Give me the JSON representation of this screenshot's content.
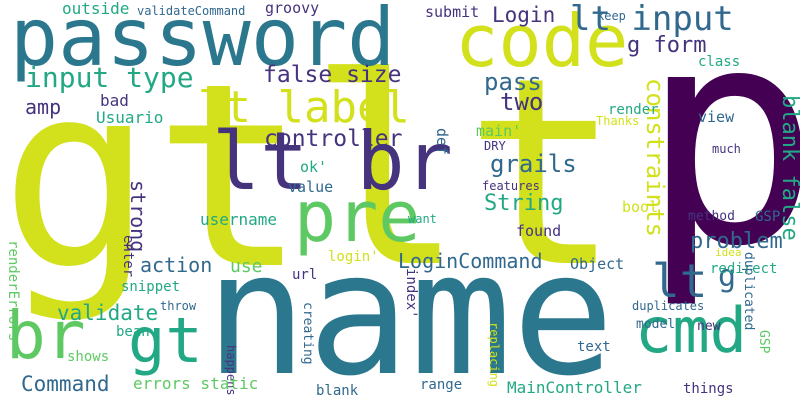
{
  "palette": {
    "background": "#ffffff",
    "yellow_green": "#d2e11b",
    "teal": "#2b788e",
    "deep_purple": "#46337e",
    "dark_purple": "#440154",
    "green": "#5ec962",
    "blue_teal": "#31688e",
    "sea_green": "#22a884",
    "light_green": "#90d743"
  },
  "words": [
    {
      "text": "gt",
      "color": "yellow_green"
    },
    {
      "text": "lt",
      "color": "yellow_green"
    },
    {
      "text": "p",
      "color": "dark_purple"
    },
    {
      "text": "name",
      "color": "teal"
    },
    {
      "text": "password",
      "color": "teal"
    },
    {
      "text": "code",
      "color": "yellow_green"
    },
    {
      "text": "lt br",
      "color": "deep_purple"
    },
    {
      "text": "pre",
      "color": "green"
    },
    {
      "text": "lt label",
      "color": "yellow_green"
    },
    {
      "text": "cmd",
      "color": "sea_green"
    },
    {
      "text": "br",
      "color": "green"
    },
    {
      "text": "gt",
      "color": "sea_green"
    },
    {
      "text": "lt input",
      "color": "blue_teal"
    },
    {
      "text": "input type",
      "color": "sea_green"
    },
    {
      "text": "lt",
      "color": "blue_teal"
    },
    {
      "text": "g",
      "color": "blue_teal"
    },
    {
      "text": "blank false",
      "color": "sea_green"
    },
    {
      "text": "constraints",
      "color": "yellow_green"
    },
    {
      "text": "false size",
      "color": "deep_purple"
    },
    {
      "text": "pass",
      "color": "blue_teal"
    },
    {
      "text": "two",
      "color": "deep_purple"
    },
    {
      "text": "controller",
      "color": "deep_purple"
    },
    {
      "text": "grails",
      "color": "blue_teal"
    },
    {
      "text": "String",
      "color": "sea_green"
    },
    {
      "text": "problem",
      "color": "blue_teal"
    },
    {
      "text": "LoginCommand",
      "color": "blue_teal"
    },
    {
      "text": "Login",
      "color": "deep_purple"
    },
    {
      "text": "g form",
      "color": "deep_purple"
    },
    {
      "text": "validate",
      "color": "sea_green"
    },
    {
      "text": "Command",
      "color": "blue_teal"
    },
    {
      "text": "action",
      "color": "blue_teal"
    },
    {
      "text": "strong",
      "color": "deep_purple"
    },
    {
      "text": "amp",
      "color": "deep_purple"
    },
    {
      "text": "use",
      "color": "green"
    },
    {
      "text": "outside",
      "color": "sea_green"
    },
    {
      "text": "validateCommand",
      "color": "blue_teal"
    },
    {
      "text": "groovy",
      "color": "deep_purple"
    },
    {
      "text": "submit",
      "color": "deep_purple"
    },
    {
      "text": "keep",
      "color": "blue_teal"
    },
    {
      "text": "Usuario",
      "color": "sea_green"
    },
    {
      "text": "bad",
      "color": "deep_purple"
    },
    {
      "text": "main'",
      "color": "green"
    },
    {
      "text": "ok'",
      "color": "sea_green"
    },
    {
      "text": "DRY",
      "color": "deep_purple"
    },
    {
      "text": "def",
      "color": "blue_teal"
    },
    {
      "text": "value",
      "color": "blue_teal"
    },
    {
      "text": "username",
      "color": "sea_green"
    },
    {
      "text": "enter",
      "color": "deep_purple"
    },
    {
      "text": "Object",
      "color": "blue_teal"
    },
    {
      "text": "found",
      "color": "deep_purple"
    },
    {
      "text": "bool",
      "color": "yellow_green"
    },
    {
      "text": "want",
      "color": "sea_green"
    },
    {
      "text": "features",
      "color": "deep_purple"
    },
    {
      "text": "render",
      "color": "sea_green"
    },
    {
      "text": "class",
      "color": "sea_green"
    },
    {
      "text": "view",
      "color": "blue_teal"
    },
    {
      "text": "Thanks",
      "color": "yellow_green"
    },
    {
      "text": "much",
      "color": "deep_purple"
    },
    {
      "text": "method",
      "color": "deep_purple"
    },
    {
      "text": "GSP",
      "color": "blue_teal"
    },
    {
      "text": "idea",
      "color": "yellow_green"
    },
    {
      "text": "redirect",
      "color": "sea_green"
    },
    {
      "text": "renderErrors",
      "color": "green"
    },
    {
      "text": "snippet",
      "color": "sea_green"
    },
    {
      "text": "login'",
      "color": "yellow_green"
    },
    {
      "text": "url",
      "color": "deep_purple"
    },
    {
      "text": "throw",
      "color": "blue_teal"
    },
    {
      "text": "bean",
      "color": "sea_green"
    },
    {
      "text": "index'",
      "color": "deep_purple"
    },
    {
      "text": "creating",
      "color": "blue_teal"
    },
    {
      "text": "model",
      "color": "blue_teal"
    },
    {
      "text": "new",
      "color": "deep_purple"
    },
    {
      "text": "duplicates",
      "color": "blue_teal"
    },
    {
      "text": "duplicated",
      "color": "blue_teal"
    },
    {
      "text": "shows",
      "color": "green"
    },
    {
      "text": "happens",
      "color": "deep_purple"
    },
    {
      "text": "replacing",
      "color": "yellow_green"
    },
    {
      "text": "text",
      "color": "blue_teal"
    },
    {
      "text": "errors static",
      "color": "green"
    },
    {
      "text": "blank",
      "color": "blue_teal"
    },
    {
      "text": "range",
      "color": "blue_teal"
    },
    {
      "text": "MainController",
      "color": "sea_green"
    },
    {
      "text": "things",
      "color": "deep_purple"
    },
    {
      "text": "GSP",
      "color": "green"
    }
  ]
}
